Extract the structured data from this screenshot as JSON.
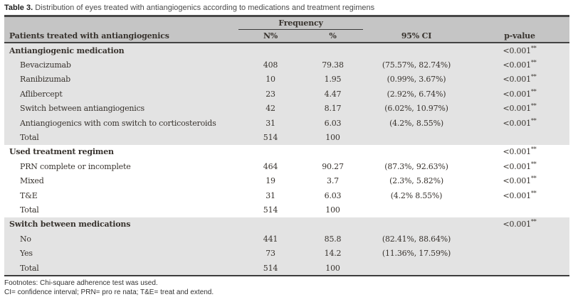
{
  "title": {
    "bold": "Table 3.",
    "rest": "Distribution of eyes treated with antiangiogenics according to medications and treatment regimens"
  },
  "table": {
    "col1_header": "Patients treated with antiangiogenics",
    "freq_group_header": "Frequency",
    "columns": {
      "n": "N%",
      "pct": "%",
      "ci": "95% CI",
      "p": "p-value"
    },
    "rows": [
      {
        "label": "Antiangiogenic medication",
        "n": "",
        "pct": "",
        "ci": "",
        "p": "<0.001**"
      },
      {
        "label": "Bevacizumab",
        "n": "408",
        "pct": "79.38",
        "ci": "(75.57%, 82.74%)",
        "p": "<0.001**"
      },
      {
        "label": "Ranibizumab",
        "n": "10",
        "pct": "1.95",
        "ci": "(0.99%, 3.67%)",
        "p": "<0.001**"
      },
      {
        "label": "Aflibercept",
        "n": "23",
        "pct": "4.47",
        "ci": "(2.92%, 6.74%)",
        "p": "<0.001**"
      },
      {
        "label": "Switch between antiangiogenics",
        "n": "42",
        "pct": "8.17",
        "ci": "(6.02%, 10.97%)",
        "p": "<0.001**"
      },
      {
        "label": "Antiangiogenics with com switch to corticosteroids",
        "n": "31",
        "pct": "6.03",
        "ci": "(4.2%, 8.55%)",
        "p": "<0.001**"
      },
      {
        "label": "Total",
        "n": "514",
        "pct": "100",
        "ci": "",
        "p": ""
      },
      {
        "label": "Used treatment regimen",
        "n": "",
        "pct": "",
        "ci": "",
        "p": "<0.001**"
      },
      {
        "label": "PRN complete or incomplete",
        "n": "464",
        "pct": "90.27",
        "ci": "(87.3%, 92.63%)",
        "p": "<0.001**"
      },
      {
        "label": "Mixed",
        "n": "19",
        "pct": "3.7",
        "ci": "(2.3%, 5.82%)",
        "p": "<0.001**"
      },
      {
        "label": "T&E",
        "n": "31",
        "pct": "6.03",
        "ci": "(4.2% 8.55%)",
        "p": "<0.001**"
      },
      {
        "label": "Total",
        "n": "514",
        "pct": "100",
        "ci": "",
        "p": ""
      },
      {
        "label": "Switch between medications",
        "n": "",
        "pct": "",
        "ci": "",
        "p": "<0.001**"
      },
      {
        "label": "No",
        "n": "441",
        "pct": "85.8",
        "ci": "(82.41%, 88.64%)",
        "p": ""
      },
      {
        "label": "Yes",
        "n": "73",
        "pct": "14.2",
        "ci": "(11.36%, 17.59%)",
        "p": ""
      },
      {
        "label": "Total",
        "n": "514",
        "pct": "100",
        "ci": "",
        "p": ""
      }
    ]
  },
  "footnotes": {
    "line1": "Footnotes: Chi-square adherence test was used.",
    "line2": "CI= confidence interval; PRN= pro re nata; T&E= treat and extend."
  },
  "colors": {
    "header_bg": "#c5c5c5",
    "section_bg": "#e3e3e3",
    "border": "#474747"
  }
}
